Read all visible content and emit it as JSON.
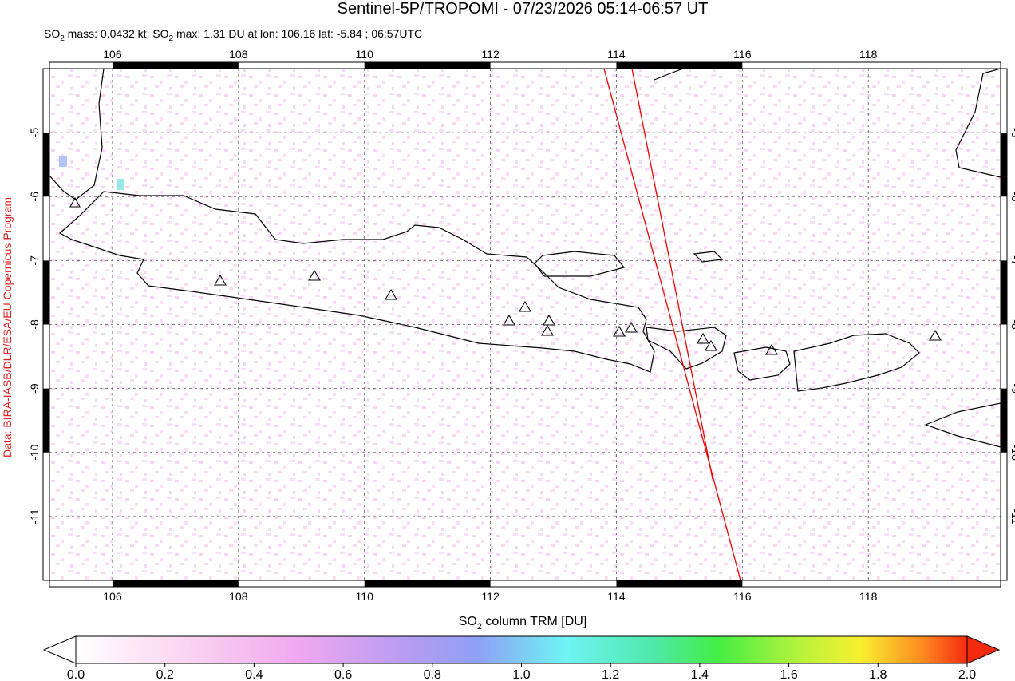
{
  "header": {
    "title": "Sentinel-5P/TROPOMI - 07/23/2026 05:14-06:57 UT",
    "subtitle": [
      "SO",
      "2",
      " mass: 0.0432 kt; SO",
      "2",
      " max: 1.31 DU at lon: 106.16 lat: -5.84 ; 06:57UTC"
    ]
  },
  "credit": "Data: BIRA-IASB/DLR/ESA/EU Copernicus Program",
  "map": {
    "xlim": [
      105,
      120.1
    ],
    "ylim": [
      -12,
      -4
    ],
    "xticks": [
      106,
      108,
      110,
      112,
      114,
      116,
      118
    ],
    "yticks": [
      -5,
      -6,
      -7,
      -8,
      -9,
      -10,
      -11
    ],
    "grid": true
  },
  "colorbar": {
    "label": [
      "SO",
      "2",
      " column TRM [DU]"
    ],
    "lim": [
      0,
      2
    ],
    "ticks": [
      {
        "value": 0,
        "label": "0.0"
      },
      0.2,
      0.4,
      0.6,
      0.8,
      {
        "value": 1,
        "label": "1.0"
      },
      1.2,
      1.4,
      1.6,
      1.8,
      {
        "value": 2,
        "label": "2.0"
      }
    ]
  }
}
